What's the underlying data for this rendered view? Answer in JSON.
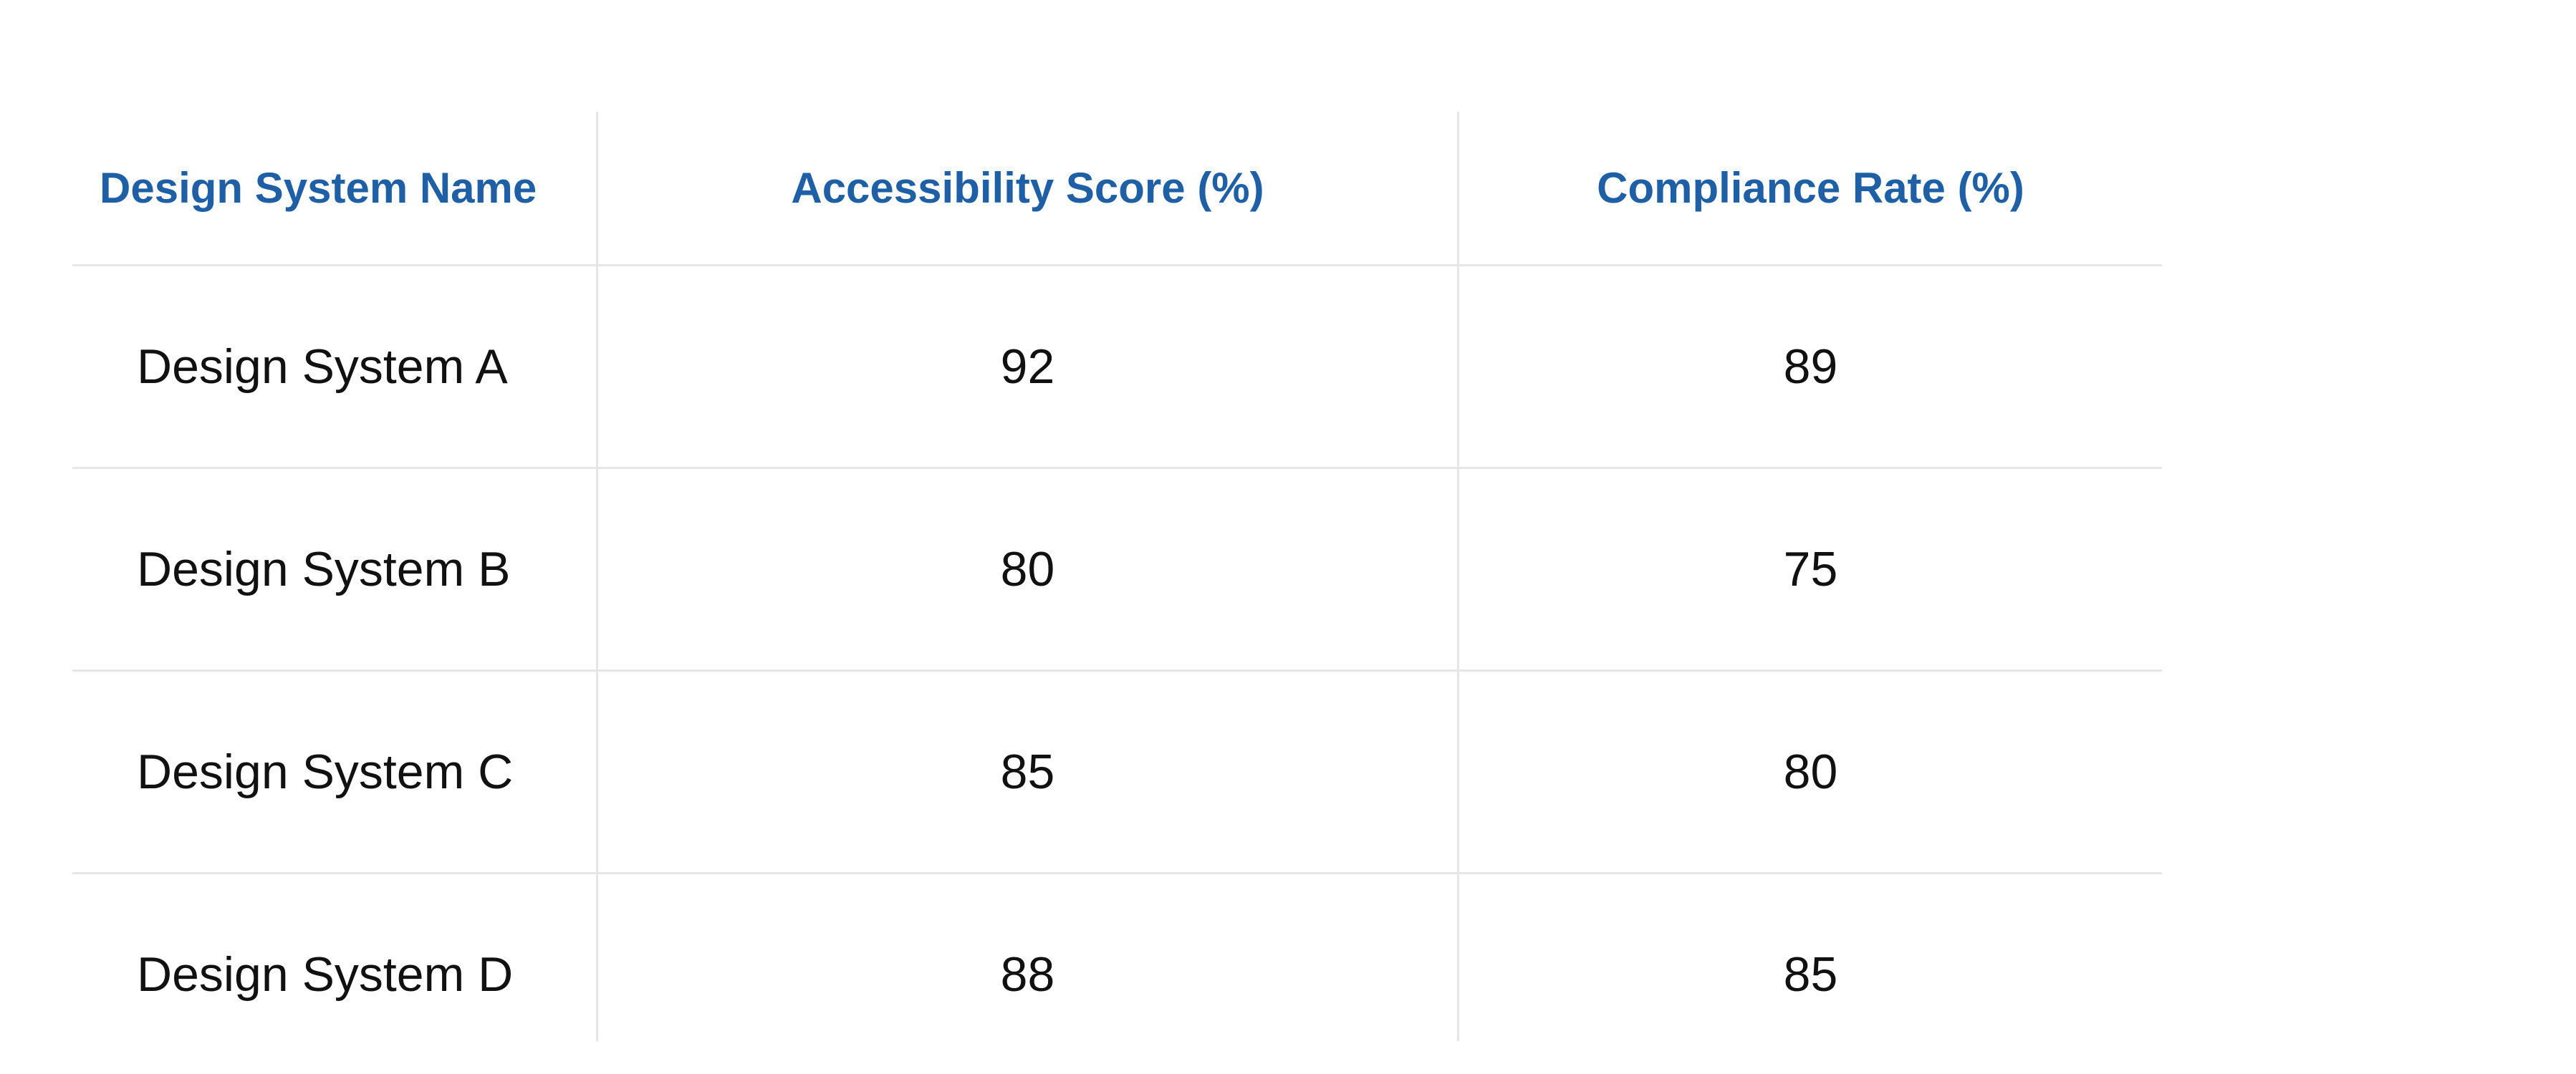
{
  "table": {
    "header": [
      "Design System Name",
      "Accessibility Score (%)",
      "Compliance Rate (%)"
    ],
    "rows": [
      [
        "Design System A",
        "92",
        "89"
      ],
      [
        "Design System B",
        "80",
        "75"
      ],
      [
        "Design System C",
        "85",
        "80"
      ],
      [
        "Design System D",
        "88",
        "85"
      ]
    ]
  }
}
